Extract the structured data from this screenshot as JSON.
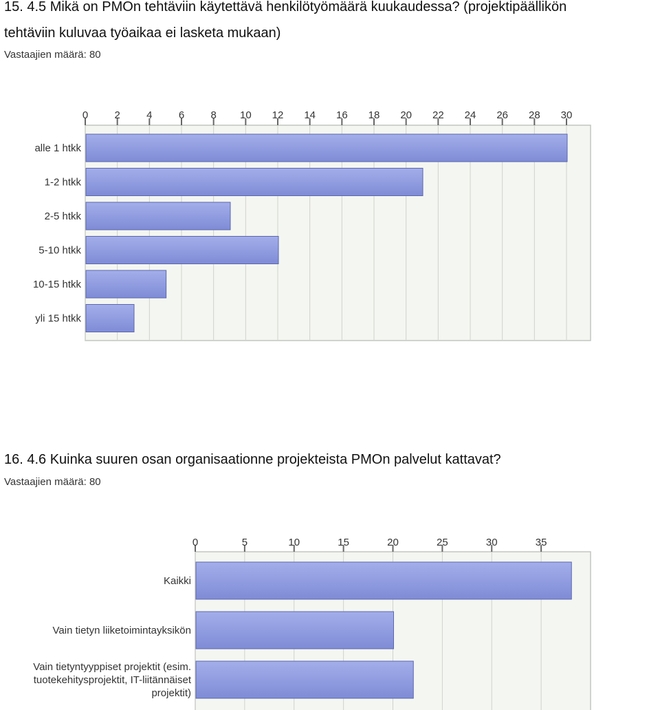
{
  "questions": [
    {
      "title_line1": "15. 4.5 Mikä on PMOn tehtäviin käytettävä henkilötyömäärä kuukaudessa? (projektipäällikön",
      "title_line2": "tehtäviin kuluvaa työaikaa ei lasketa mukaan)",
      "respondents": "Vastaajien määrä: 80"
    },
    {
      "title_line1": "16. 4.6 Kuinka suuren osan organisaationne projekteista PMOn palvelut kattavat?",
      "respondents": "Vastaajien määrä: 80"
    }
  ],
  "colors": {
    "bar": "#7f8cd6",
    "bar_top": "#a3aeea",
    "bar_edge": "#5b66b0",
    "plot_bg": "#f4f6f1",
    "grid": "#cfd3cc",
    "frame": "#c2c6bf"
  },
  "chart_data": [
    {
      "type": "bar",
      "orientation": "horizontal",
      "categories": [
        "alle 1 htkk",
        "1-2 htkk",
        "2-5 htkk",
        "5-10 htkk",
        "10-15 htkk",
        "yli 15 htkk"
      ],
      "values": [
        30,
        21,
        9,
        12,
        5,
        3
      ],
      "xlim": [
        0,
        31.5
      ],
      "ticks": [
        0,
        2,
        4,
        6,
        8,
        10,
        12,
        14,
        16,
        18,
        20,
        22,
        24,
        26,
        28,
        30
      ],
      "grid": true,
      "axis_position": "top"
    },
    {
      "type": "bar",
      "orientation": "horizontal",
      "categories": [
        [
          "Kaikki"
        ],
        [
          "Vain tietyn liiketoimintayksikön"
        ],
        [
          "Vain tietyntyyppiset projektit (esim.",
          "tuotekehitysprojektit, IT-liitännäiset",
          "projektit)"
        ]
      ],
      "values": [
        38,
        20,
        22
      ],
      "xlim": [
        0,
        40
      ],
      "ticks": [
        0,
        5,
        10,
        15,
        20,
        25,
        30,
        35
      ],
      "grid": true,
      "axis_position": "top"
    }
  ]
}
